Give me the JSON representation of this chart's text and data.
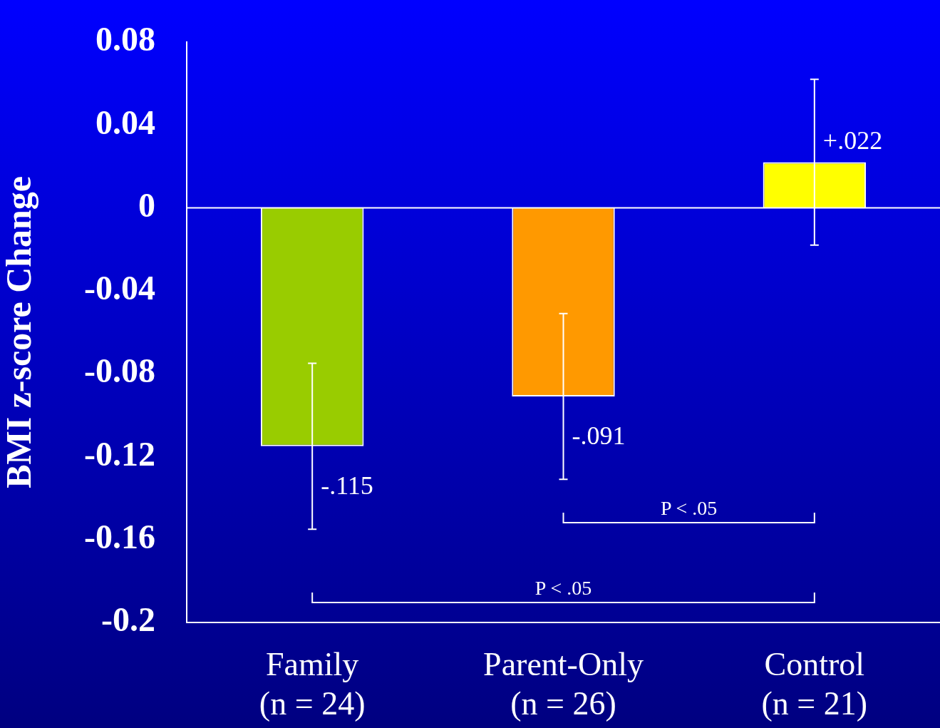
{
  "chart_data": {
    "type": "bar",
    "ylabel": "BMI z-score Change",
    "categories": [
      "Family\n(n = 24)",
      "Parent-Only\n(n = 26)",
      "Control\n(n = 21)"
    ],
    "values": [
      -0.115,
      -0.091,
      0.022
    ],
    "colors": [
      "#99cc00",
      "#ff9900",
      "#ffff00"
    ],
    "errors": [
      0.04,
      0.04,
      0.04
    ],
    "value_labels": [
      "-.115",
      "-.091",
      "+.022"
    ],
    "ylim": [
      -0.2,
      0.08
    ],
    "yticks": [
      -0.2,
      -0.16,
      -0.12,
      -0.08,
      -0.04,
      0,
      0.04,
      0.08
    ],
    "ref_lines": [
      {
        "axis": "y",
        "value": 0,
        "color": "#ffffff"
      }
    ],
    "annotations": [
      "P < .05",
      "P < .05"
    ],
    "grid": false,
    "legend": false
  }
}
